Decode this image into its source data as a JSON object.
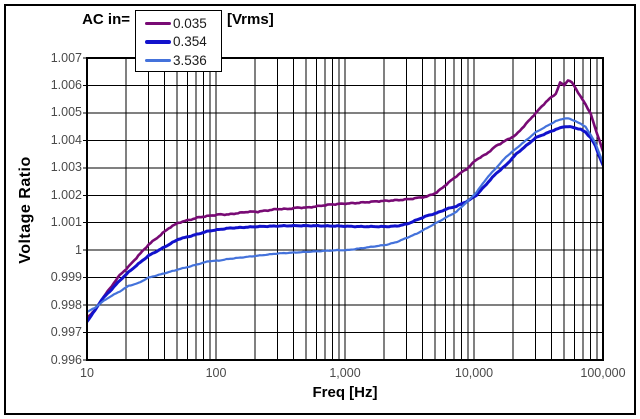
{
  "legend": {
    "prefix_label": "AC in=",
    "suffix_label": "[Vrms]"
  },
  "axes": {
    "x": {
      "title": "Freq [Hz]",
      "scale": "log",
      "min": 10,
      "max": 100000,
      "tick_values": [
        10,
        100,
        1000,
        10000,
        100000
      ],
      "tick_labels": [
        "10",
        "100",
        "1,000",
        "10,000",
        "100,000"
      ],
      "minor_gridlines": "multiples 2-9 of each decade"
    },
    "y": {
      "title": "Voltage Ratio",
      "min": 0.996,
      "max": 1.007,
      "step": 0.001,
      "tick_values": [
        1.007,
        1.006,
        1.005,
        1.004,
        1.003,
        1.002,
        1.001,
        1.0,
        0.999,
        0.998,
        0.997,
        0.996
      ],
      "tick_labels": [
        "1.007",
        "1.006",
        "1.005",
        "1.004",
        "1.003",
        "1.002",
        "1.001",
        "1",
        "0.999",
        "0.998",
        "0.997",
        "0.996"
      ]
    }
  },
  "style": {
    "gridline_color": "#000000",
    "plot_border_color": "#000000",
    "tick_label_color": "#4a4a4a",
    "background": "#ffffff"
  },
  "chart_data": {
    "type": "line",
    "title": "",
    "xlabel": "Freq [Hz]",
    "ylabel": "Voltage Ratio",
    "x_scale": "log",
    "xlim": [
      10,
      100000
    ],
    "ylim": [
      0.996,
      1.007
    ],
    "grid": true,
    "legend_position": "top",
    "legend_prefix": "AC in=",
    "legend_units": "[Vrms]",
    "x": [
      10,
      11.5,
      13,
      15,
      18,
      21,
      25,
      30,
      36,
      43,
      51,
      62,
      74,
      88,
      105,
      125,
      148,
      177,
      211,
      252,
      301,
      360,
      429,
      512,
      611,
      730,
      871,
      1040,
      1242,
      1483,
      1771,
      2114,
      2524,
      3014,
      3598,
      4296,
      5130,
      6125,
      7313,
      9000,
      10424,
      12446,
      14860,
      17743,
      21184,
      25293,
      30199,
      36056,
      43050,
      46500,
      50000,
      53500,
      57500,
      61371,
      67000,
      73275,
      80000,
      87486,
      94000,
      100000
    ],
    "series": [
      {
        "name": "0.035",
        "color": "#780A74",
        "line_width": 2.6,
        "values": [
          0.99755,
          0.9978,
          0.9982,
          0.9986,
          0.9991,
          0.9994,
          0.9998,
          1.0002,
          1.0005,
          1.0008,
          1.001,
          1.0011,
          1.0012,
          1.00125,
          1.0013,
          1.0013,
          1.00135,
          1.0014,
          1.0014,
          1.00145,
          1.0015,
          1.0015,
          1.00155,
          1.00155,
          1.0016,
          1.00165,
          1.00168,
          1.0017,
          1.00172,
          1.00175,
          1.00178,
          1.0018,
          1.00182,
          1.00185,
          1.0019,
          1.00195,
          1.0021,
          1.0024,
          1.0027,
          1.003,
          1.0033,
          1.0035,
          1.0038,
          1.004,
          1.0042,
          1.0046,
          1.005,
          1.0054,
          1.0057,
          1.0061,
          1.006,
          1.0062,
          1.0061,
          1.0059,
          1.0056,
          1.0053,
          1.005,
          1.0044,
          1.004,
          1.0036
        ]
      },
      {
        "name": "0.354",
        "color": "#1212CC",
        "line_width": 3,
        "values": [
          0.9974,
          0.9978,
          0.9982,
          0.9985,
          0.9989,
          0.9992,
          0.9995,
          0.9998,
          1.0,
          1.0002,
          1.0004,
          1.0005,
          1.0006,
          1.0007,
          1.00075,
          1.0008,
          1.00082,
          1.00084,
          1.00086,
          1.00087,
          1.00088,
          1.00089,
          1.00089,
          1.00089,
          1.00089,
          1.00088,
          1.00088,
          1.00087,
          1.00086,
          1.00086,
          1.00086,
          1.00086,
          1.00088,
          1.00095,
          1.0011,
          1.00125,
          1.00135,
          1.0015,
          1.0016,
          1.0018,
          1.002,
          1.0024,
          1.0028,
          1.0031,
          1.0035,
          1.0038,
          1.0041,
          1.00425,
          1.0044,
          1.00445,
          1.0045,
          1.0045,
          1.00448,
          1.00445,
          1.0044,
          1.0043,
          1.0041,
          1.0038,
          1.0034,
          1.0031
        ]
      },
      {
        "name": "3.536",
        "color": "#4472DB",
        "line_width": 2.2,
        "values": [
          0.99775,
          0.9979,
          0.9981,
          0.9983,
          0.9985,
          0.9987,
          0.9988,
          0.999,
          0.9991,
          0.9992,
          0.9993,
          0.9994,
          0.9995,
          0.9996,
          0.99962,
          0.99968,
          0.99972,
          0.99976,
          0.9998,
          0.99984,
          0.99988,
          0.9999,
          0.99992,
          0.99994,
          0.99996,
          0.99998,
          1.0,
          1.0,
          1.00005,
          1.0001,
          1.00015,
          1.0002,
          1.0003,
          1.00045,
          1.0006,
          1.0008,
          1.001,
          1.0012,
          1.0014,
          1.0018,
          1.0021,
          1.0026,
          1.003,
          1.0034,
          1.0037,
          1.004,
          1.0043,
          1.0045,
          1.0047,
          1.00475,
          1.0048,
          1.0048,
          1.00475,
          1.0047,
          1.0046,
          1.0045,
          1.0042,
          1.0039,
          1.0035,
          1.0032
        ]
      }
    ]
  }
}
